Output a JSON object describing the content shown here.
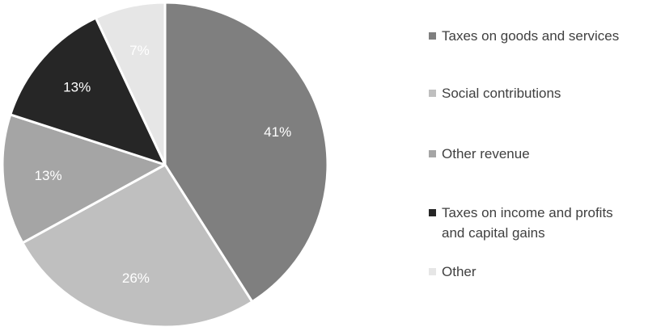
{
  "chart_data": {
    "type": "pie",
    "title": "",
    "slices": [
      {
        "label": "Taxes on goods and services",
        "value": 41,
        "value_label": "41%",
        "color": "#7f7f7f",
        "label_color": "#ffffff"
      },
      {
        "label": "Social contributions",
        "value": 26,
        "value_label": "26%",
        "color": "#bfbfbf",
        "label_color": "#ffffff"
      },
      {
        "label": "Other revenue",
        "value": 13,
        "value_label": "13%",
        "color": "#a5a5a5",
        "label_color": "#ffffff"
      },
      {
        "label": "Taxes on income and profits and capital gains",
        "label_lines": [
          "Taxes on income and profits",
          "and capital gains"
        ],
        "value": 13,
        "value_label": "13%",
        "color": "#262626",
        "label_color": "#ffffff"
      },
      {
        "label": "Other",
        "value": 7,
        "value_label": "7%",
        "color": "#e6e6e6",
        "label_color": "#ffffff"
      }
    ],
    "start_angle": "12 o'clock",
    "direction": "clockwise",
    "legend_position": "right"
  }
}
